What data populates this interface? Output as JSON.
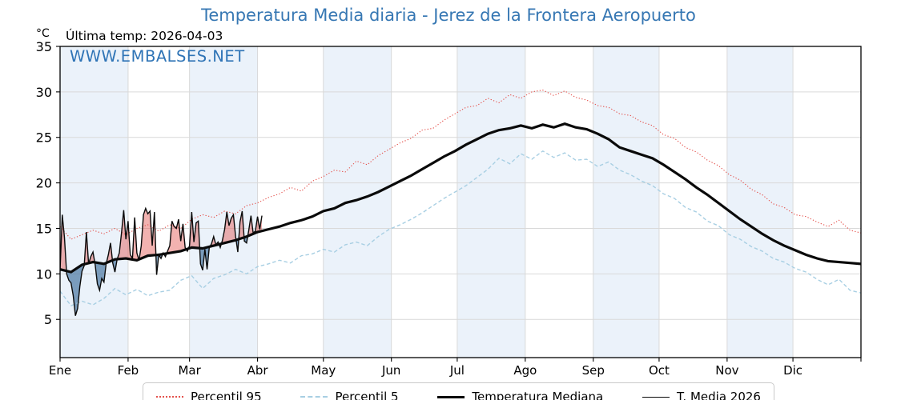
{
  "title": "Temperatura Media diaria - Jerez de la Frontera Aeropuerto",
  "subtitle": "Última temp: 2026-04-03",
  "watermark": "WWW.EMBALSES.NET",
  "y_unit": "°C",
  "colors": {
    "title_blue": "#3677b3",
    "watermark_blue": "#2f74b6",
    "p95_red": "#e4524d",
    "p5_blue": "#a8cfe3",
    "median_black": "#0a0a0a",
    "t2026_black": "#0a0a0a",
    "fill_above": "rgba(226,84,79,0.45)",
    "fill_below": "rgba(54,104,150,0.62)",
    "month_band": "#ebf2fa",
    "grid": "#d9d9d9"
  },
  "chart_data": {
    "type": "line",
    "title": "Temperatura Media diaria - Jerez de la Frontera Aeropuerto",
    "xlabel": "",
    "ylabel": "°C",
    "x_unit": "day_of_year",
    "days_in_year": 365,
    "ylim": [
      0.8,
      35
    ],
    "yticks": [
      5,
      10,
      15,
      20,
      25,
      30,
      35
    ],
    "grid": true,
    "legend_position": "bottom",
    "x_tick_labels": [
      "Ene",
      "Feb",
      "Mar",
      "Abr",
      "May",
      "Jun",
      "Jul",
      "Ago",
      "Sep",
      "Oct",
      "Nov",
      "Dic"
    ],
    "month_start_days": [
      0,
      31,
      59,
      90,
      120,
      151,
      181,
      212,
      243,
      273,
      304,
      334
    ],
    "shaded_month_indices": [
      0,
      2,
      4,
      6,
      8,
      10
    ],
    "fills": {
      "between": [
        "T. Media 2026",
        "Temperatura Mediana"
      ],
      "above_color": "rgba(226,84,79,0.45)",
      "below_color": "rgba(54,104,150,0.62)"
    },
    "series": [
      {
        "name": "Percentil 95",
        "style": "dotted",
        "color": "#e4524d",
        "width": 1.1,
        "x": [
          0,
          5,
          10,
          15,
          20,
          25,
          30,
          35,
          40,
          45,
          50,
          55,
          60,
          65,
          70,
          75,
          80,
          85,
          90,
          95,
          100,
          105,
          110,
          115,
          120,
          125,
          130,
          135,
          140,
          145,
          150,
          155,
          160,
          165,
          170,
          175,
          180,
          185,
          190,
          195,
          200,
          205,
          210,
          215,
          220,
          225,
          230,
          235,
          240,
          245,
          250,
          255,
          260,
          265,
          270,
          275,
          280,
          285,
          290,
          295,
          300,
          305,
          310,
          315,
          320,
          325,
          330,
          335,
          340,
          345,
          350,
          355,
          360,
          365
        ],
        "y": [
          15.2,
          13.8,
          14.3,
          14.8,
          14.4,
          15.0,
          14.3,
          15.0,
          15.4,
          14.7,
          15.4,
          15.0,
          16.0,
          16.5,
          16.2,
          16.9,
          16.6,
          17.5,
          17.8,
          18.4,
          18.8,
          19.5,
          19.1,
          20.2,
          20.7,
          21.4,
          21.2,
          22.4,
          22.0,
          23.0,
          23.7,
          24.4,
          24.9,
          25.8,
          26.0,
          26.9,
          27.6,
          28.3,
          28.5,
          29.3,
          28.8,
          29.7,
          29.3,
          30.0,
          30.2,
          29.6,
          30.1,
          29.4,
          29.1,
          28.5,
          28.3,
          27.6,
          27.4,
          26.7,
          26.3,
          25.3,
          24.9,
          23.9,
          23.4,
          22.5,
          21.9,
          20.9,
          20.3,
          19.3,
          18.7,
          17.7,
          17.3,
          16.5,
          16.3,
          15.7,
          15.2,
          15.9,
          14.8,
          14.5
        ]
      },
      {
        "name": "Percentil 5",
        "style": "dashed",
        "color": "#a8cfe3",
        "width": 1.4,
        "x": [
          0,
          5,
          10,
          15,
          20,
          25,
          30,
          35,
          40,
          45,
          50,
          55,
          60,
          65,
          70,
          75,
          80,
          85,
          90,
          95,
          100,
          105,
          110,
          115,
          120,
          125,
          130,
          135,
          140,
          145,
          150,
          155,
          160,
          165,
          170,
          175,
          180,
          185,
          190,
          195,
          200,
          205,
          210,
          215,
          220,
          225,
          230,
          235,
          240,
          245,
          250,
          255,
          260,
          265,
          270,
          275,
          280,
          285,
          290,
          295,
          300,
          305,
          310,
          315,
          320,
          325,
          330,
          335,
          340,
          345,
          350,
          355,
          360,
          365
        ],
        "y": [
          8.1,
          6.5,
          7.0,
          6.6,
          7.3,
          8.4,
          7.7,
          8.3,
          7.6,
          8.0,
          8.2,
          9.3,
          9.8,
          8.4,
          9.5,
          9.9,
          10.5,
          10.0,
          10.8,
          11.1,
          11.5,
          11.2,
          12.0,
          12.2,
          12.7,
          12.4,
          13.2,
          13.5,
          13.1,
          14.1,
          14.9,
          15.4,
          16.0,
          16.7,
          17.5,
          18.3,
          19.0,
          19.7,
          20.6,
          21.5,
          22.7,
          22.1,
          23.2,
          22.6,
          23.5,
          22.8,
          23.3,
          22.5,
          22.6,
          21.8,
          22.3,
          21.4,
          20.9,
          20.2,
          19.7,
          18.8,
          18.3,
          17.3,
          16.8,
          15.8,
          15.3,
          14.3,
          13.8,
          13.0,
          12.5,
          11.7,
          11.3,
          10.6,
          10.2,
          9.4,
          8.8,
          9.4,
          8.2,
          7.9
        ]
      },
      {
        "name": "Temperatura Mediana",
        "style": "solid",
        "color": "#0a0a0a",
        "width": 3.2,
        "x": [
          0,
          5,
          10,
          15,
          20,
          25,
          30,
          35,
          40,
          45,
          50,
          55,
          60,
          65,
          70,
          75,
          80,
          85,
          90,
          95,
          100,
          105,
          110,
          115,
          120,
          125,
          130,
          135,
          140,
          145,
          150,
          155,
          160,
          165,
          170,
          175,
          180,
          185,
          190,
          195,
          200,
          205,
          210,
          215,
          220,
          225,
          230,
          235,
          240,
          245,
          250,
          255,
          260,
          265,
          270,
          275,
          280,
          285,
          290,
          295,
          300,
          305,
          310,
          315,
          320,
          325,
          330,
          335,
          340,
          345,
          350,
          355,
          360,
          365
        ],
        "y": [
          10.5,
          10.2,
          11.0,
          11.3,
          11.1,
          11.6,
          11.7,
          11.5,
          12.0,
          12.1,
          12.3,
          12.5,
          12.9,
          12.8,
          13.1,
          13.4,
          13.7,
          14.1,
          14.6,
          14.9,
          15.2,
          15.6,
          15.9,
          16.3,
          16.9,
          17.2,
          17.8,
          18.1,
          18.5,
          19.0,
          19.6,
          20.2,
          20.8,
          21.5,
          22.2,
          22.9,
          23.5,
          24.2,
          24.8,
          25.4,
          25.8,
          26.0,
          26.3,
          26.0,
          26.4,
          26.1,
          26.5,
          26.1,
          25.9,
          25.4,
          24.8,
          23.9,
          23.5,
          23.1,
          22.7,
          22.0,
          21.2,
          20.4,
          19.5,
          18.7,
          17.8,
          16.9,
          16.0,
          15.2,
          14.4,
          13.7,
          13.1,
          12.6,
          12.1,
          11.7,
          11.4,
          11.3,
          11.2,
          11.1
        ]
      },
      {
        "name": "T. Media 2026",
        "style": "solid",
        "color": "#0a0a0a",
        "width": 1.4,
        "x": [
          0,
          1,
          2,
          3,
          4,
          5,
          6,
          7,
          8,
          9,
          10,
          11,
          12,
          13,
          14,
          15,
          16,
          17,
          18,
          19,
          20,
          21,
          22,
          23,
          24,
          25,
          26,
          27,
          28,
          29,
          30,
          31,
          32,
          33,
          34,
          35,
          36,
          37,
          38,
          39,
          40,
          41,
          42,
          43,
          44,
          45,
          46,
          47,
          48,
          49,
          50,
          51,
          52,
          53,
          54,
          55,
          56,
          57,
          58,
          59,
          60,
          61,
          62,
          63,
          64,
          65,
          66,
          67,
          68,
          69,
          70,
          71,
          72,
          73,
          74,
          75,
          76,
          77,
          78,
          79,
          80,
          81,
          82,
          83,
          84,
          85,
          86,
          87,
          88,
          89,
          90,
          91,
          92
        ],
        "y": [
          10.4,
          16.5,
          14.0,
          10.0,
          9.3,
          9.0,
          7.6,
          5.4,
          6.2,
          8.6,
          10.3,
          10.9,
          14.6,
          11.1,
          11.9,
          12.4,
          11.0,
          8.9,
          8.2,
          9.5,
          9.1,
          11.1,
          12.1,
          13.4,
          11.2,
          10.2,
          11.6,
          12.3,
          14.5,
          17.0,
          13.8,
          15.8,
          12.1,
          11.7,
          16.2,
          12.3,
          11.5,
          13.1,
          16.5,
          17.2,
          16.6,
          16.9,
          13.1,
          16.8,
          9.9,
          12.1,
          11.7,
          12.3,
          11.9,
          12.5,
          13.1,
          15.8,
          15.2,
          15.0,
          16.0,
          13.6,
          15.5,
          12.9,
          12.5,
          13.1,
          16.8,
          13.5,
          15.6,
          15.8,
          11.1,
          10.4,
          12.7,
          10.5,
          12.9,
          13.3,
          14.1,
          13.2,
          13.5,
          12.9,
          13.7,
          14.9,
          16.8,
          15.3,
          16.1,
          16.5,
          14.1,
          12.4,
          15.7,
          16.9,
          13.6,
          13.4,
          14.8,
          16.4,
          14.5,
          14.7,
          16.3,
          14.9,
          16.4
        ]
      }
    ]
  }
}
